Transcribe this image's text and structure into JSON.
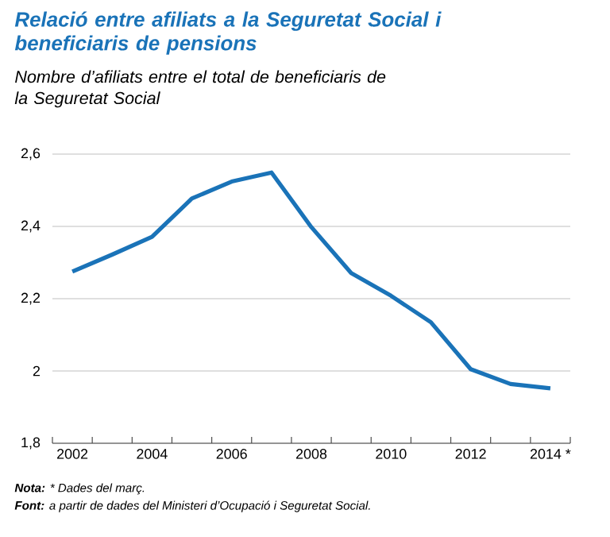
{
  "chart_data": {
    "type": "line",
    "title": "Relació entre afiliats a la Seguretat Social i beneficiaris de pensions",
    "subtitle": "Nombre d’afiliats entre el total de beneficiaris de la Seguretat Social",
    "categories": [
      "2002",
      null,
      "2004",
      null,
      "2006",
      null,
      "2008",
      null,
      "2010",
      null,
      "2012",
      null,
      "2014 *"
    ],
    "series": [
      {
        "color": "#1a73b8",
        "values": [
          2.275,
          2.322,
          2.371,
          2.477,
          2.524,
          2.549,
          2.398,
          2.271,
          2.208,
          2.135,
          2.005,
          1.964,
          1.952
        ]
      }
    ],
    "ylim": [
      1.8,
      2.6
    ],
    "yticks": [
      {
        "value": 1.8,
        "label": "1,8"
      },
      2,
      {
        "value": 2.2,
        "label": "2,2"
      },
      {
        "value": 2.4,
        "label": "2,4"
      },
      {
        "value": 2.6,
        "label": "2,6"
      }
    ],
    "grid": "y",
    "marker": "none",
    "line_style": "solid",
    "annotations": [
      "**Nota:** * Dades del març.",
      "**Font:** a partir de dades del Ministeri d’Ocupació i Seguretat Social."
    ]
  }
}
